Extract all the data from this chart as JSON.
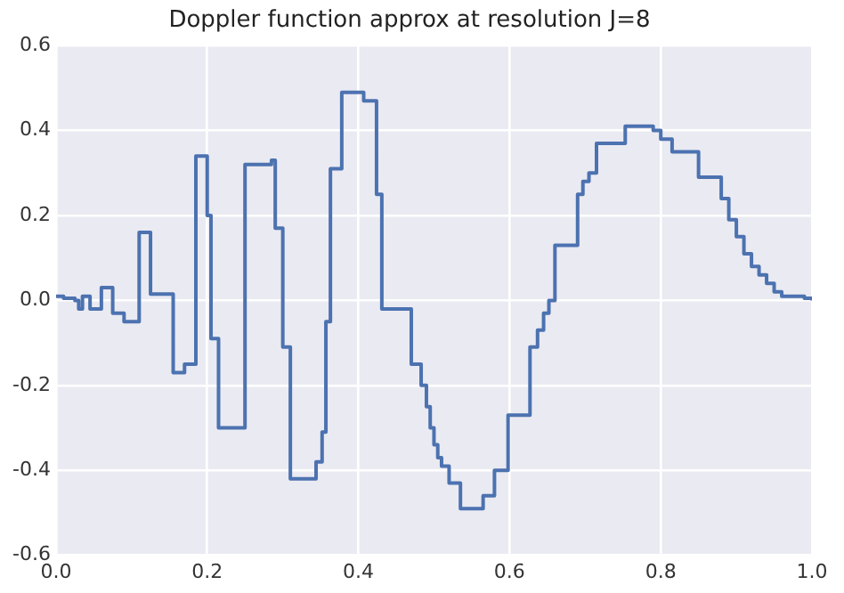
{
  "chart_data": {
    "type": "step",
    "title": "Doppler function approx at resolution J=8",
    "x": [
      0,
      0.01,
      0.025,
      0.03,
      0.035,
      0.045,
      0.06,
      0.075,
      0.09,
      0.11,
      0.125,
      0.155,
      0.17,
      0.185,
      0.2,
      0.205,
      0.215,
      0.25,
      0.285,
      0.29,
      0.3,
      0.31,
      0.344,
      0.352,
      0.357,
      0.363,
      0.378,
      0.407,
      0.424,
      0.431,
      0.47,
      0.483,
      0.49,
      0.495,
      0.5,
      0.505,
      0.51,
      0.52,
      0.535,
      0.565,
      0.58,
      0.598,
      0.627,
      0.637,
      0.645,
      0.652,
      0.66,
      0.69,
      0.697,
      0.705,
      0.715,
      0.753,
      0.79,
      0.8,
      0.815,
      0.85,
      0.88,
      0.89,
      0.9,
      0.91,
      0.92,
      0.93,
      0.94,
      0.95,
      0.96,
      0.975,
      0.99,
      1.0
    ],
    "series": [
      {
        "color": "#4c72b0",
        "values": [
          0.01,
          0.005,
          0.0,
          -0.02,
          0.01,
          -0.02,
          0.03,
          -0.03,
          -0.05,
          0.16,
          0.015,
          -0.17,
          -0.15,
          0.34,
          0.2,
          -0.09,
          -0.3,
          0.32,
          0.33,
          0.17,
          -0.11,
          -0.42,
          -0.38,
          -0.31,
          -0.05,
          0.31,
          0.49,
          0.47,
          0.25,
          -0.02,
          -0.15,
          -0.2,
          -0.25,
          -0.3,
          -0.34,
          -0.37,
          -0.39,
          -0.43,
          -0.49,
          -0.46,
          -0.4,
          -0.27,
          -0.11,
          -0.07,
          -0.03,
          0.0,
          0.13,
          0.25,
          0.28,
          0.3,
          0.37,
          0.41,
          0.4,
          0.38,
          0.35,
          0.29,
          0.24,
          0.19,
          0.15,
          0.11,
          0.08,
          0.06,
          0.04,
          0.02,
          0.01,
          0.01,
          0.005,
          0.0
        ]
      }
    ],
    "xlim": [
      0,
      1
    ],
    "xticks": [
      {
        "value": 0,
        "label": "0.0"
      },
      0.2,
      0.4,
      0.6,
      0.8,
      {
        "value": 1,
        "label": "1.0"
      }
    ],
    "ylim": [
      -0.6,
      0.6
    ],
    "yticks": [
      -0.6,
      -0.4,
      -0.2,
      {
        "value": 0,
        "label": "0.0"
      },
      0.2,
      0.4,
      0.6
    ],
    "grid": true,
    "line_style": "solid",
    "marker": "none"
  }
}
